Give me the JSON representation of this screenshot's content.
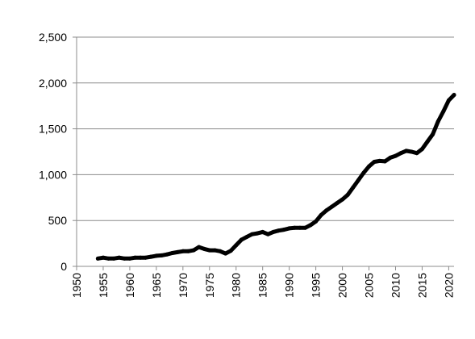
{
  "chart_data": {
    "type": "line",
    "title": "",
    "xlabel": "",
    "ylabel": "",
    "xlim": [
      1950,
      2021
    ],
    "ylim": [
      0,
      2500
    ],
    "grid": true,
    "x_ticks": [
      1950,
      1955,
      1960,
      1965,
      1970,
      1975,
      1980,
      1985,
      1990,
      1995,
      2000,
      2005,
      2010,
      2015,
      2020
    ],
    "x_tick_labels": [
      "1950",
      "1955",
      "1960",
      "1965",
      "1970",
      "1975",
      "1980",
      "1985",
      "1990",
      "1995",
      "2000",
      "2005",
      "2010",
      "2015",
      "2020"
    ],
    "y_ticks": [
      0,
      500,
      1000,
      1500,
      2000,
      2500
    ],
    "y_tick_labels": [
      "0",
      "500",
      "1,000",
      "1,500",
      "2,000",
      "2,500"
    ],
    "series": [
      {
        "color": "#000000",
        "x": [
          1954,
          1955,
          1956,
          1957,
          1958,
          1959,
          1960,
          1961,
          1962,
          1963,
          1964,
          1965,
          1966,
          1967,
          1968,
          1969,
          1970,
          1971,
          1972,
          1973,
          1974,
          1975,
          1976,
          1977,
          1978,
          1979,
          1980,
          1981,
          1982,
          1983,
          1984,
          1985,
          1986,
          1987,
          1988,
          1989,
          1990,
          1991,
          1992,
          1993,
          1994,
          1995,
          1996,
          1997,
          1998,
          1999,
          2000,
          2001,
          2002,
          2003,
          2004,
          2005,
          2006,
          2007,
          2008,
          2009,
          2010,
          2011,
          2012,
          2013,
          2014,
          2015,
          2016,
          2017,
          2018,
          2019,
          2020,
          2021
        ],
        "values": [
          85,
          95,
          85,
          85,
          95,
          85,
          85,
          95,
          95,
          95,
          105,
          115,
          120,
          130,
          145,
          155,
          165,
          165,
          175,
          210,
          190,
          175,
          175,
          165,
          140,
          170,
          230,
          290,
          320,
          350,
          360,
          375,
          350,
          375,
          390,
          400,
          415,
          420,
          420,
          420,
          450,
          490,
          560,
          610,
          650,
          690,
          730,
          780,
          860,
          940,
          1020,
          1090,
          1140,
          1150,
          1145,
          1185,
          1205,
          1235,
          1260,
          1250,
          1235,
          1280,
          1360,
          1440,
          1580,
          1690,
          1810,
          1870
        ]
      }
    ]
  }
}
